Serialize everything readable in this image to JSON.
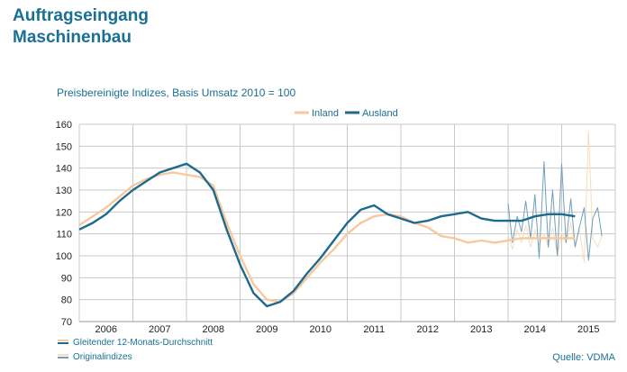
{
  "header": {
    "title_line1": "Auftragseingang",
    "title_line2": "Maschinenbau"
  },
  "chart_data": {
    "type": "line",
    "subtitle": "Preisbereinigte Indizes, Basis Umsatz 2010 = 100",
    "ylim": [
      70,
      160
    ],
    "yticks": [
      70,
      80,
      90,
      100,
      110,
      120,
      130,
      140,
      150,
      160
    ],
    "xlim": [
      2005.5,
      2015.5
    ],
    "year_labels": [
      "2006",
      "2007",
      "2008",
      "2009",
      "2010",
      "2011",
      "2012",
      "2013",
      "2014",
      "2015"
    ],
    "grid": true,
    "legend_top": [
      "Inland",
      "Ausland"
    ],
    "legend_bottom": [
      "Gleitender 12-Monats-Durchschnitt",
      "Originalindizes"
    ],
    "source": "Quelle: VDMA",
    "colors": {
      "inland": "#f7c89b",
      "ausland": "#1e6a8f",
      "inland_light": "#fbdcbd",
      "ausland_light": "#6f9fbb"
    },
    "series": [
      {
        "name": "Inland",
        "x": [
          2005.5,
          2005.75,
          2006.0,
          2006.25,
          2006.5,
          2006.75,
          2007.0,
          2007.25,
          2007.5,
          2007.75,
          2008.0,
          2008.25,
          2008.5,
          2008.75,
          2009.0,
          2009.25,
          2009.5,
          2009.75,
          2010.0,
          2010.25,
          2010.5,
          2010.75,
          2011.0,
          2011.25,
          2011.5,
          2011.75,
          2012.0,
          2012.25,
          2012.5,
          2012.75,
          2013.0,
          2013.25,
          2013.5,
          2013.75,
          2014.0,
          2014.25,
          2014.5,
          2014.75
        ],
        "y": [
          114,
          118,
          122,
          127,
          132,
          135,
          137,
          138,
          137,
          136,
          132,
          115,
          100,
          87,
          80,
          79,
          83,
          90,
          97,
          103,
          110,
          115,
          118,
          119,
          118,
          115,
          113,
          109,
          108,
          106,
          107,
          106,
          107,
          108,
          108,
          108,
          108,
          108
        ]
      },
      {
        "name": "Ausland",
        "x": [
          2005.5,
          2005.75,
          2006.0,
          2006.25,
          2006.5,
          2006.75,
          2007.0,
          2007.25,
          2007.5,
          2007.75,
          2008.0,
          2008.25,
          2008.5,
          2008.75,
          2009.0,
          2009.25,
          2009.5,
          2009.75,
          2010.0,
          2010.25,
          2010.5,
          2010.75,
          2011.0,
          2011.25,
          2011.5,
          2011.75,
          2012.0,
          2012.25,
          2012.5,
          2012.75,
          2013.0,
          2013.25,
          2013.5,
          2013.75,
          2014.0,
          2014.25,
          2014.5,
          2014.75
        ],
        "y": [
          112,
          115,
          119,
          125,
          130,
          134,
          138,
          140,
          142,
          138,
          130,
          112,
          96,
          83,
          77,
          79,
          84,
          92,
          99,
          107,
          115,
          121,
          123,
          119,
          117,
          115,
          116,
          118,
          119,
          120,
          117,
          116,
          116,
          116,
          118,
          119,
          119,
          118
        ]
      },
      {
        "name": "Inland (Originalindizes)",
        "x": [
          2013.5,
          2013.58,
          2013.67,
          2013.75,
          2013.83,
          2013.92,
          2014.0,
          2014.08,
          2014.17,
          2014.25,
          2014.33,
          2014.42,
          2014.5,
          2014.58,
          2014.67,
          2014.75,
          2014.83,
          2014.92,
          2015.0,
          2015.08,
          2015.17,
          2015.25
        ],
        "y": [
          110,
          103,
          112,
          106,
          114,
          104,
          112,
          105,
          110,
          104,
          113,
          100,
          111,
          106,
          115,
          104,
          112,
          97,
          157,
          108,
          104,
          109
        ]
      },
      {
        "name": "Ausland (Originalindizes)",
        "x": [
          2013.5,
          2013.58,
          2013.67,
          2013.75,
          2013.83,
          2013.92,
          2014.0,
          2014.08,
          2014.17,
          2014.25,
          2014.33,
          2014.42,
          2014.5,
          2014.58,
          2014.67,
          2014.75,
          2014.83,
          2014.92,
          2015.0,
          2015.08,
          2015.17,
          2015.25
        ],
        "y": [
          124,
          106,
          118,
          111,
          125,
          108,
          128,
          99,
          143,
          104,
          130,
          100,
          142,
          106,
          126,
          104,
          113,
          122,
          98,
          117,
          122,
          109
        ]
      }
    ]
  }
}
